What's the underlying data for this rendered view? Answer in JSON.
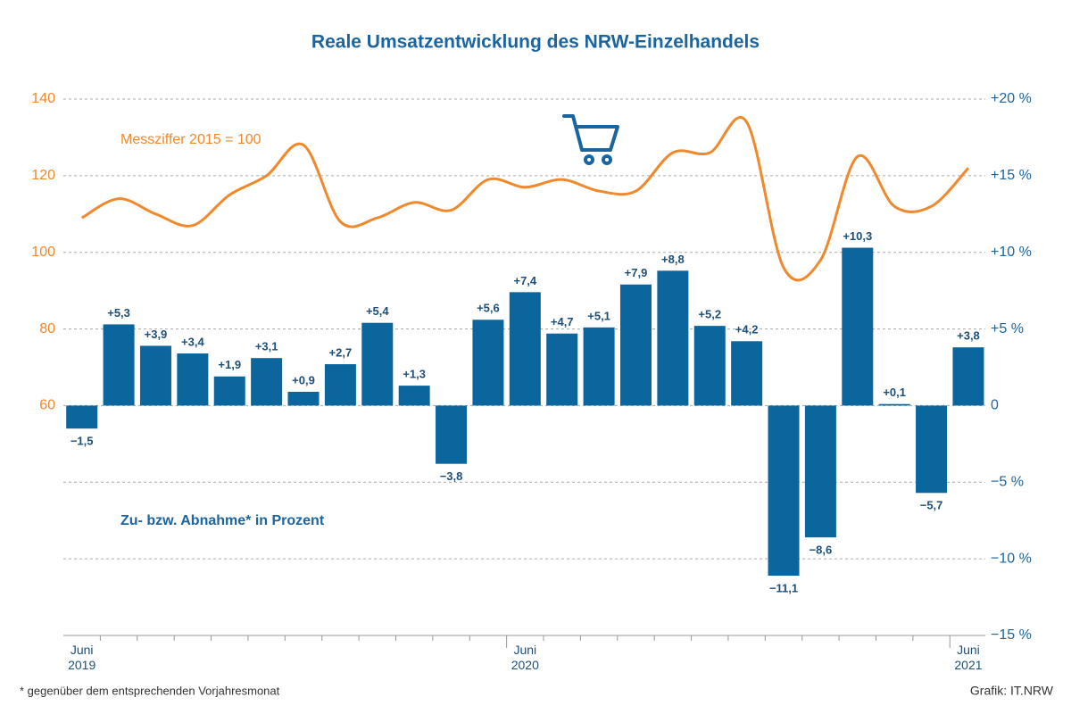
{
  "chart_data": {
    "type": "bar",
    "title": "Reale Umsatzentwicklung des NRW-Einzelhandels",
    "annotations": [
      "Messziffer 2015 = 100",
      "Zu- bzw. Abnahme* in Prozent"
    ],
    "footnote": "*  gegenüber dem entsprechenden Vorjahresmonat",
    "source": "Grafik: IT.NRW",
    "categories": [
      "Juni\n2019",
      null,
      null,
      null,
      null,
      null,
      null,
      null,
      null,
      null,
      null,
      null,
      "Juni\n2020",
      null,
      null,
      null,
      null,
      null,
      null,
      null,
      null,
      null,
      null,
      null,
      "Juni\n2021"
    ],
    "series": [
      {
        "type": "bar",
        "axis": "y2",
        "color": "#0a669d",
        "values": [
          -1.5,
          5.3,
          3.9,
          3.4,
          1.9,
          3.1,
          0.9,
          2.7,
          5.4,
          1.3,
          -3.8,
          5.6,
          7.4,
          4.7,
          5.1,
          7.9,
          8.8,
          5.2,
          4.2,
          -11.1,
          -8.6,
          10.3,
          0.1,
          -5.7,
          3.8
        ],
        "value_labels": [
          "−1,5",
          "+5,3",
          "+3,9",
          "+3,4",
          "+1,9",
          "+3,1",
          "+0,9",
          "+2,7",
          "+5,4",
          "+1,3",
          "−3,8",
          "+5,6",
          "+7,4",
          "+4,7",
          "+5,1",
          "+7,9",
          "+8,8",
          "+5,2",
          "+4,2",
          "−11,1",
          "−8,6",
          "+10,3",
          "+0,1",
          "−5,7",
          "+3,8"
        ]
      },
      {
        "type": "line",
        "color": "#f0882c",
        "values": [
          109,
          114,
          110,
          107,
          115,
          120,
          128,
          108,
          109,
          113,
          111,
          119,
          117,
          119,
          116,
          116,
          126,
          126,
          134,
          96,
          98,
          125,
          112,
          112,
          122
        ]
      }
    ],
    "ylim": [
      0,
      140
    ],
    "yticks": [
      60,
      80,
      100,
      120,
      140
    ],
    "y2lim": [
      -15,
      20
    ],
    "y2ticks": [
      {
        "value": 20,
        "label": "+20 %"
      },
      {
        "value": 15,
        "label": "+15 %"
      },
      {
        "value": 10,
        "label": "+10 %"
      },
      {
        "value": 5,
        "label": "+5 %"
      },
      0,
      {
        "value": -5,
        "label": "−5 %"
      },
      {
        "value": -10,
        "label": "−10 %"
      },
      {
        "value": -15,
        "label": "−15 %"
      }
    ],
    "grid": true
  }
}
